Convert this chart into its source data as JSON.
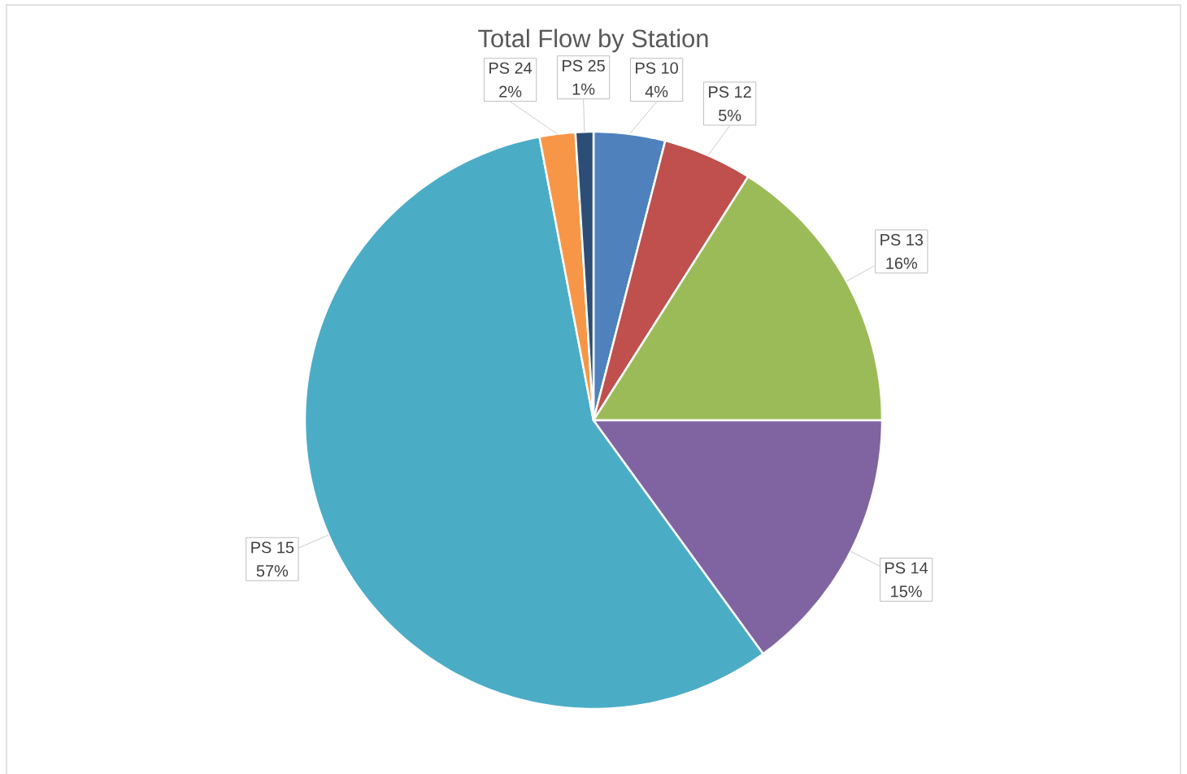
{
  "chart_data": {
    "type": "pie",
    "title": "Total Flow by Station",
    "categories": [
      "PS 10",
      "PS 12",
      "PS 13",
      "PS 14",
      "PS 15",
      "PS 24",
      "PS 25"
    ],
    "values": [
      4,
      5,
      16,
      15,
      57,
      2,
      1
    ],
    "value_labels": [
      "4%",
      "5%",
      "16%",
      "15%",
      "57%",
      "2%",
      "1%"
    ],
    "colors": [
      "#4f81bd",
      "#c0504d",
      "#9bbb59",
      "#8064a2",
      "#4bacc6",
      "#f79646",
      "#2c4d75"
    ]
  }
}
